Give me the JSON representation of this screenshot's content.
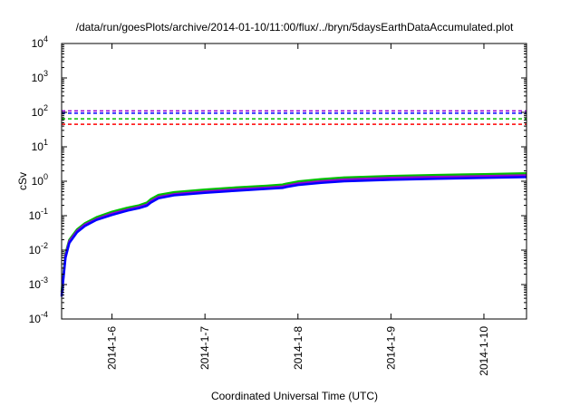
{
  "chart_data": {
    "type": "line",
    "title": "/data/run/goesPlots/archive/2014-01-10/11:00/flux/../bryn/5daysEarthDataAccumulated.plot",
    "xlabel": "Coordinated Universal Time (UTC)",
    "ylabel": "cSv",
    "yscale": "log",
    "ylim": [
      0.0001,
      10000
    ],
    "xlim": [
      "2014-01-05T11:00",
      "2014-01-10T11:00"
    ],
    "x_ticks": [
      "2014-1-6",
      "2014-1-7",
      "2014-1-8",
      "2014-1-9",
      "2014-1-10"
    ],
    "x_tick_dates": [
      "2014-01-06T00:00",
      "2014-01-07T00:00",
      "2014-01-08T00:00",
      "2014-01-09T00:00",
      "2014-01-10T00:00"
    ],
    "y_ticks": [
      {
        "value": 0.0001,
        "base": "10",
        "exp": "-4"
      },
      {
        "value": 0.001,
        "base": "10",
        "exp": "-3"
      },
      {
        "value": 0.01,
        "base": "10",
        "exp": "-2"
      },
      {
        "value": 0.1,
        "base": "10",
        "exp": "-1"
      },
      {
        "value": 1,
        "base": "10",
        "exp": "0"
      },
      {
        "value": 10,
        "base": "10",
        "exp": "1"
      },
      {
        "value": 100,
        "base": "10",
        "exp": "2"
      },
      {
        "value": 1000,
        "base": "10",
        "exp": "3"
      },
      {
        "value": 10000,
        "base": "10",
        "exp": "4"
      }
    ],
    "grid": false,
    "reference_lines": [
      {
        "value": 110,
        "color": "#9400d3",
        "style": "dashed"
      },
      {
        "value": 95,
        "color": "#0000ff",
        "style": "dashed"
      },
      {
        "value": 65,
        "color": "#00c000",
        "style": "dashed"
      },
      {
        "value": 45,
        "color": "#ff0000",
        "style": "dashed"
      }
    ],
    "series": [
      {
        "color": "#00c000",
        "x": [
          "2014-01-05T11:00",
          "2014-01-05T12:00",
          "2014-01-05T13:00",
          "2014-01-05T15:00",
          "2014-01-05T17:00",
          "2014-01-05T20:00",
          "2014-01-06T00:00",
          "2014-01-06T04:00",
          "2014-01-06T07:00",
          "2014-01-06T09:00",
          "2014-01-06T10:00",
          "2014-01-06T12:00",
          "2014-01-06T16:00",
          "2014-01-07T00:00",
          "2014-01-07T08:00",
          "2014-01-07T16:00",
          "2014-01-07T20:00",
          "2014-01-07T21:00",
          "2014-01-08T00:00",
          "2014-01-08T06:00",
          "2014-01-08T12:00",
          "2014-01-09T00:00",
          "2014-01-09T12:00",
          "2014-01-10T00:00",
          "2014-01-10T11:00"
        ],
        "y": [
          0.0006,
          0.008,
          0.02,
          0.04,
          0.06,
          0.09,
          0.13,
          0.17,
          0.2,
          0.24,
          0.3,
          0.4,
          0.48,
          0.57,
          0.66,
          0.74,
          0.8,
          0.85,
          0.98,
          1.15,
          1.28,
          1.42,
          1.52,
          1.6,
          1.7
        ]
      },
      {
        "color": "#9400d3",
        "x": [
          "2014-01-05T11:00",
          "2014-01-05T12:00",
          "2014-01-05T13:00",
          "2014-01-05T15:00",
          "2014-01-05T17:00",
          "2014-01-05T20:00",
          "2014-01-06T00:00",
          "2014-01-06T04:00",
          "2014-01-06T07:00",
          "2014-01-06T09:00",
          "2014-01-06T10:00",
          "2014-01-06T12:00",
          "2014-01-06T16:00",
          "2014-01-07T00:00",
          "2014-01-07T08:00",
          "2014-01-07T16:00",
          "2014-01-07T20:00",
          "2014-01-07T21:00",
          "2014-01-08T00:00",
          "2014-01-08T06:00",
          "2014-01-08T12:00",
          "2014-01-09T00:00",
          "2014-01-09T12:00",
          "2014-01-10T00:00",
          "2014-01-10T11:00"
        ],
        "y": [
          0.0005,
          0.007,
          0.018,
          0.036,
          0.055,
          0.08,
          0.115,
          0.15,
          0.18,
          0.21,
          0.26,
          0.35,
          0.42,
          0.5,
          0.58,
          0.65,
          0.7,
          0.74,
          0.86,
          1.0,
          1.12,
          1.25,
          1.33,
          1.4,
          1.48
        ]
      },
      {
        "color": "#0000ff",
        "x": [
          "2014-01-05T11:00",
          "2014-01-05T12:00",
          "2014-01-05T13:00",
          "2014-01-05T15:00",
          "2014-01-05T17:00",
          "2014-01-05T20:00",
          "2014-01-06T00:00",
          "2014-01-06T04:00",
          "2014-01-06T07:00",
          "2014-01-06T09:00",
          "2014-01-06T10:00",
          "2014-01-06T12:00",
          "2014-01-06T16:00",
          "2014-01-07T00:00",
          "2014-01-07T08:00",
          "2014-01-07T16:00",
          "2014-01-07T20:00",
          "2014-01-07T21:00",
          "2014-01-08T00:00",
          "2014-01-08T06:00",
          "2014-01-08T12:00",
          "2014-01-09T00:00",
          "2014-01-09T12:00",
          "2014-01-10T00:00",
          "2014-01-10T11:00"
        ],
        "y": [
          0.00045,
          0.006,
          0.016,
          0.033,
          0.05,
          0.075,
          0.105,
          0.14,
          0.165,
          0.195,
          0.24,
          0.32,
          0.39,
          0.46,
          0.53,
          0.6,
          0.64,
          0.68,
          0.78,
          0.9,
          1.0,
          1.1,
          1.18,
          1.25,
          1.32
        ]
      }
    ]
  }
}
